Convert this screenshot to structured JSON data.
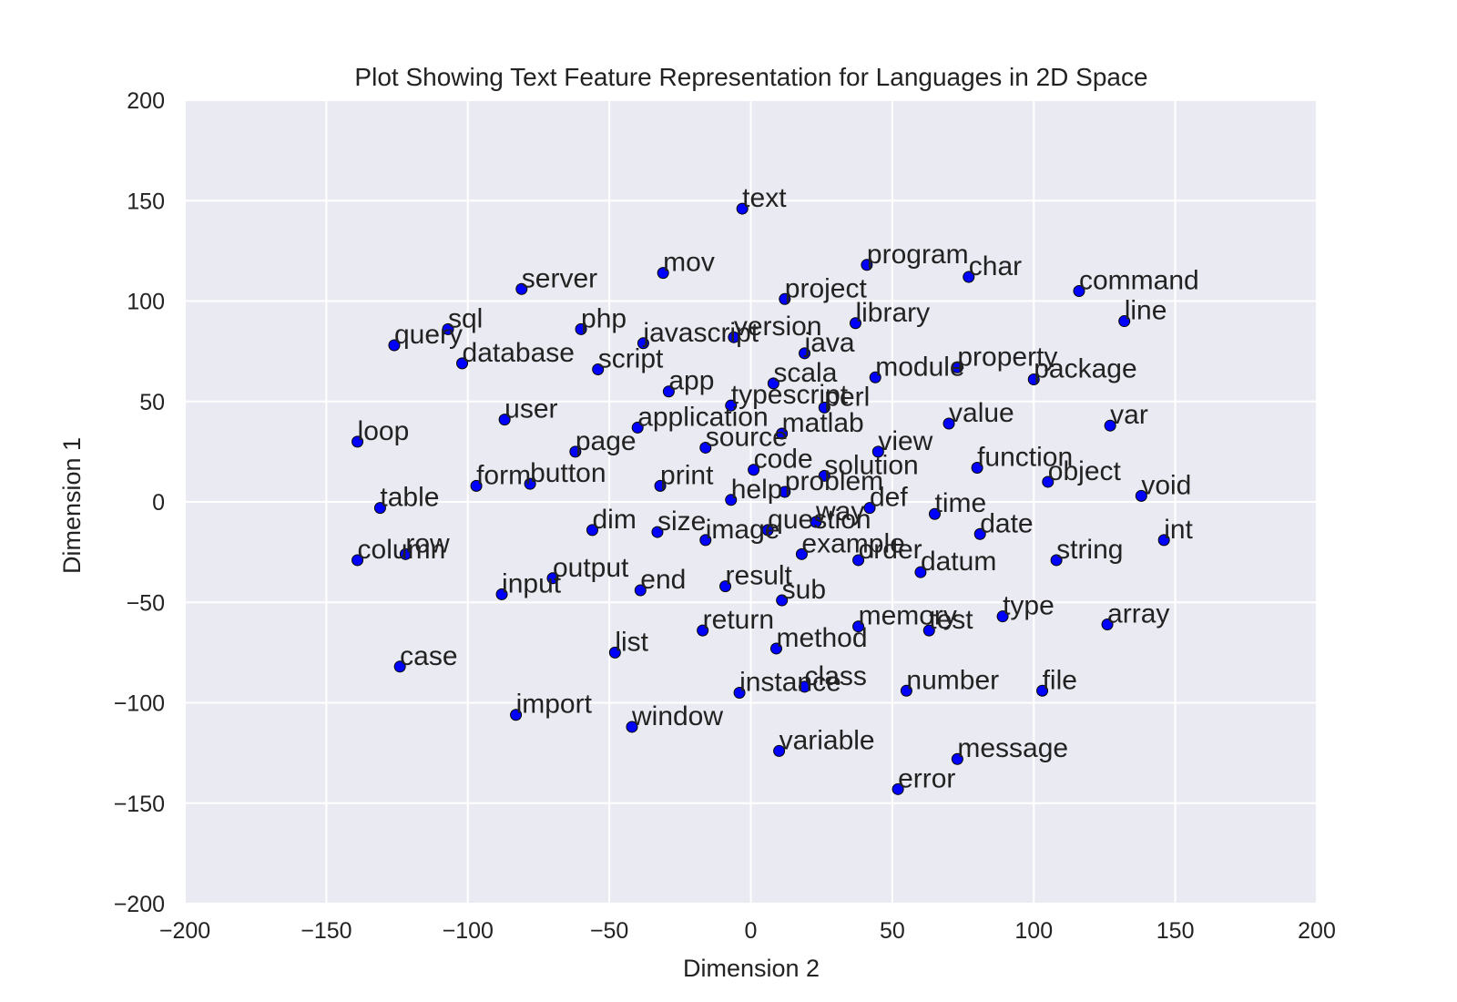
{
  "chart_data": {
    "type": "scatter",
    "title": "Plot Showing Text Feature Representation for Languages in 2D Space",
    "xlabel": "Dimension 2",
    "ylabel": "Dimension 1",
    "xlim": [
      -200,
      200
    ],
    "ylim": [
      -200,
      200
    ],
    "xticks": [
      -200,
      -150,
      -100,
      -50,
      0,
      50,
      100,
      150,
      200
    ],
    "yticks": [
      -200,
      -150,
      -100,
      -50,
      0,
      50,
      100,
      150,
      200
    ],
    "grid": true,
    "colors": {
      "background": "#eaeaf2",
      "grid": "#ffffff",
      "point_fill": "#0000ff",
      "point_edge": "#000000",
      "text": "#222222"
    },
    "points": [
      {
        "label": "text",
        "x": -3,
        "y": 146
      },
      {
        "label": "program",
        "x": 41,
        "y": 118
      },
      {
        "label": "char",
        "x": 77,
        "y": 112
      },
      {
        "label": "mov",
        "x": -31,
        "y": 114
      },
      {
        "label": "server",
        "x": -81,
        "y": 106
      },
      {
        "label": "command",
        "x": 116,
        "y": 105
      },
      {
        "label": "project",
        "x": 12,
        "y": 101
      },
      {
        "label": "line",
        "x": 132,
        "y": 90
      },
      {
        "label": "library",
        "x": 37,
        "y": 89
      },
      {
        "label": "sql",
        "x": -107,
        "y": 86
      },
      {
        "label": "php",
        "x": -60,
        "y": 86
      },
      {
        "label": "version",
        "x": -6,
        "y": 82
      },
      {
        "label": "javascript",
        "x": -38,
        "y": 79
      },
      {
        "label": "query",
        "x": -126,
        "y": 78
      },
      {
        "label": "java",
        "x": 19,
        "y": 74
      },
      {
        "label": "database",
        "x": -102,
        "y": 69
      },
      {
        "label": "property",
        "x": 73,
        "y": 67
      },
      {
        "label": "script",
        "x": -54,
        "y": 66
      },
      {
        "label": "module",
        "x": 44,
        "y": 62
      },
      {
        "label": "package",
        "x": 100,
        "y": 61
      },
      {
        "label": "scala",
        "x": 8,
        "y": 59
      },
      {
        "label": "app",
        "x": -29,
        "y": 55
      },
      {
        "label": "typescript",
        "x": -7,
        "y": 48
      },
      {
        "label": "perl",
        "x": 26,
        "y": 47
      },
      {
        "label": "user",
        "x": -87,
        "y": 41
      },
      {
        "label": "value",
        "x": 70,
        "y": 39
      },
      {
        "label": "var",
        "x": 127,
        "y": 38
      },
      {
        "label": "application",
        "x": -40,
        "y": 37
      },
      {
        "label": "matlab",
        "x": 11,
        "y": 34
      },
      {
        "label": "loop",
        "x": -139,
        "y": 30
      },
      {
        "label": "source",
        "x": -16,
        "y": 27
      },
      {
        "label": "page",
        "x": -62,
        "y": 25
      },
      {
        "label": "view",
        "x": 45,
        "y": 25
      },
      {
        "label": "function",
        "x": 80,
        "y": 17
      },
      {
        "label": "code",
        "x": 1,
        "y": 16
      },
      {
        "label": "solution",
        "x": 26,
        "y": 13
      },
      {
        "label": "object",
        "x": 105,
        "y": 10
      },
      {
        "label": "form",
        "x": -97,
        "y": 8
      },
      {
        "label": "button",
        "x": -78,
        "y": 9
      },
      {
        "label": "print",
        "x": -32,
        "y": 8
      },
      {
        "label": "problem",
        "x": 12,
        "y": 5
      },
      {
        "label": "void",
        "x": 138,
        "y": 3
      },
      {
        "label": "help",
        "x": -7,
        "y": 1
      },
      {
        "label": "def",
        "x": 42,
        "y": -3
      },
      {
        "label": "table",
        "x": -131,
        "y": -3
      },
      {
        "label": "time",
        "x": 65,
        "y": -6
      },
      {
        "label": "way",
        "x": 23,
        "y": -10
      },
      {
        "label": "question",
        "x": 6,
        "y": -14
      },
      {
        "label": "dim",
        "x": -56,
        "y": -14
      },
      {
        "label": "size",
        "x": -33,
        "y": -15
      },
      {
        "label": "date",
        "x": 81,
        "y": -16
      },
      {
        "label": "int",
        "x": 146,
        "y": -19
      },
      {
        "label": "image",
        "x": -16,
        "y": -19
      },
      {
        "label": "example",
        "x": 18,
        "y": -26
      },
      {
        "label": "row",
        "x": -122,
        "y": -26
      },
      {
        "label": "column",
        "x": -139,
        "y": -29
      },
      {
        "label": "order",
        "x": 38,
        "y": -29
      },
      {
        "label": "string",
        "x": 108,
        "y": -29
      },
      {
        "label": "datum",
        "x": 60,
        "y": -35
      },
      {
        "label": "output",
        "x": -70,
        "y": -38
      },
      {
        "label": "result",
        "x": -9,
        "y": -42
      },
      {
        "label": "end",
        "x": -39,
        "y": -44
      },
      {
        "label": "input",
        "x": -88,
        "y": -46
      },
      {
        "label": "sub",
        "x": 11,
        "y": -49
      },
      {
        "label": "type",
        "x": 89,
        "y": -57
      },
      {
        "label": "array",
        "x": 126,
        "y": -61
      },
      {
        "label": "memory",
        "x": 38,
        "y": -62
      },
      {
        "label": "test",
        "x": 63,
        "y": -64
      },
      {
        "label": "return",
        "x": -17,
        "y": -64
      },
      {
        "label": "method",
        "x": 9,
        "y": -73
      },
      {
        "label": "list",
        "x": -48,
        "y": -75
      },
      {
        "label": "case",
        "x": -124,
        "y": -82
      },
      {
        "label": "class",
        "x": 19,
        "y": -92
      },
      {
        "label": "number",
        "x": 55,
        "y": -94
      },
      {
        "label": "file",
        "x": 103,
        "y": -94
      },
      {
        "label": "instance",
        "x": -4,
        "y": -95
      },
      {
        "label": "import",
        "x": -83,
        "y": -106
      },
      {
        "label": "window",
        "x": -42,
        "y": -112
      },
      {
        "label": "variable",
        "x": 10,
        "y": -124
      },
      {
        "label": "message",
        "x": 73,
        "y": -128
      },
      {
        "label": "error",
        "x": 52,
        "y": -143
      }
    ]
  }
}
